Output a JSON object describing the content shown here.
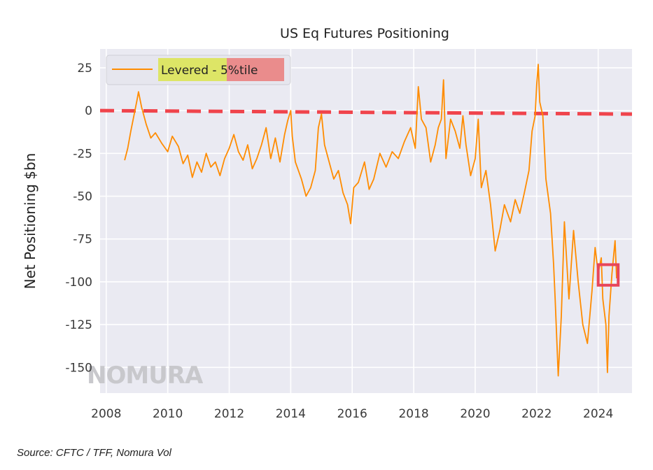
{
  "chart_data": {
    "type": "line",
    "title": "US Eq Futures Positioning",
    "xlabel": "",
    "ylabel": "Net Positioning $bn",
    "xlim": [
      2007.8,
      2025.1
    ],
    "ylim": [
      -165,
      36
    ],
    "x_ticks": [
      2008,
      2010,
      2012,
      2014,
      2016,
      2018,
      2020,
      2022,
      2024
    ],
    "y_ticks": [
      25,
      0,
      -25,
      -50,
      -75,
      -100,
      -125,
      -150
    ],
    "grid": true,
    "legend": {
      "location": "top-left",
      "entry": "Levered",
      "suffix": " - 5%tile"
    },
    "reference_line": {
      "y": 0,
      "style": "dashed",
      "color": "#f0444c"
    },
    "highlight_box": {
      "x": [
        2024.0,
        2024.65
      ],
      "y": [
        -90,
        -102
      ]
    },
    "series": [
      {
        "name": "Levered",
        "color": "#ff8c00",
        "points": [
          [
            2008.6,
            -29
          ],
          [
            2008.7,
            -22
          ],
          [
            2008.8,
            -12
          ],
          [
            2008.9,
            -3
          ],
          [
            2009.0,
            6
          ],
          [
            2009.05,
            11
          ],
          [
            2009.15,
            2
          ],
          [
            2009.3,
            -8
          ],
          [
            2009.45,
            -16
          ],
          [
            2009.6,
            -13
          ],
          [
            2009.8,
            -19
          ],
          [
            2010.0,
            -24
          ],
          [
            2010.15,
            -15
          ],
          [
            2010.35,
            -21
          ],
          [
            2010.5,
            -31
          ],
          [
            2010.65,
            -26
          ],
          [
            2010.8,
            -39
          ],
          [
            2010.95,
            -30
          ],
          [
            2011.1,
            -36
          ],
          [
            2011.25,
            -25
          ],
          [
            2011.4,
            -33
          ],
          [
            2011.55,
            -30
          ],
          [
            2011.7,
            -38
          ],
          [
            2011.85,
            -28
          ],
          [
            2012.0,
            -22
          ],
          [
            2012.15,
            -14
          ],
          [
            2012.3,
            -24
          ],
          [
            2012.45,
            -29
          ],
          [
            2012.6,
            -20
          ],
          [
            2012.75,
            -34
          ],
          [
            2012.9,
            -28
          ],
          [
            2013.05,
            -20
          ],
          [
            2013.2,
            -10
          ],
          [
            2013.35,
            -28
          ],
          [
            2013.5,
            -16
          ],
          [
            2013.65,
            -30
          ],
          [
            2013.8,
            -14
          ],
          [
            2013.9,
            -6
          ],
          [
            2014.0,
            0
          ],
          [
            2014.05,
            -15
          ],
          [
            2014.15,
            -30
          ],
          [
            2014.35,
            -40
          ],
          [
            2014.5,
            -50
          ],
          [
            2014.65,
            -45
          ],
          [
            2014.8,
            -35
          ],
          [
            2014.9,
            -10
          ],
          [
            2015.0,
            -2
          ],
          [
            2015.1,
            -20
          ],
          [
            2015.25,
            -30
          ],
          [
            2015.4,
            -40
          ],
          [
            2015.55,
            -35
          ],
          [
            2015.7,
            -48
          ],
          [
            2015.85,
            -55
          ],
          [
            2015.95,
            -66
          ],
          [
            2016.05,
            -45
          ],
          [
            2016.2,
            -42
          ],
          [
            2016.4,
            -30
          ],
          [
            2016.55,
            -46
          ],
          [
            2016.7,
            -40
          ],
          [
            2016.9,
            -25
          ],
          [
            2017.1,
            -33
          ],
          [
            2017.3,
            -24
          ],
          [
            2017.5,
            -28
          ],
          [
            2017.7,
            -18
          ],
          [
            2017.9,
            -10
          ],
          [
            2018.05,
            -22
          ],
          [
            2018.15,
            14
          ],
          [
            2018.25,
            -5
          ],
          [
            2018.4,
            -10
          ],
          [
            2018.55,
            -30
          ],
          [
            2018.7,
            -20
          ],
          [
            2018.8,
            -10
          ],
          [
            2018.9,
            -5
          ],
          [
            2018.97,
            18
          ],
          [
            2019.05,
            -28
          ],
          [
            2019.2,
            -5
          ],
          [
            2019.35,
            -12
          ],
          [
            2019.5,
            -22
          ],
          [
            2019.6,
            -3
          ],
          [
            2019.7,
            -20
          ],
          [
            2019.85,
            -38
          ],
          [
            2020.0,
            -28
          ],
          [
            2020.1,
            -5
          ],
          [
            2020.2,
            -45
          ],
          [
            2020.35,
            -35
          ],
          [
            2020.5,
            -55
          ],
          [
            2020.65,
            -82
          ],
          [
            2020.8,
            -70
          ],
          [
            2020.95,
            -55
          ],
          [
            2021.05,
            -60
          ],
          [
            2021.15,
            -65
          ],
          [
            2021.3,
            -52
          ],
          [
            2021.45,
            -60
          ],
          [
            2021.6,
            -48
          ],
          [
            2021.75,
            -35
          ],
          [
            2021.85,
            -12
          ],
          [
            2021.95,
            -3
          ],
          [
            2022.0,
            15
          ],
          [
            2022.05,
            27
          ],
          [
            2022.1,
            5
          ],
          [
            2022.2,
            -3
          ],
          [
            2022.3,
            -40
          ],
          [
            2022.45,
            -60
          ],
          [
            2022.55,
            -90
          ],
          [
            2022.6,
            -110
          ],
          [
            2022.7,
            -155
          ],
          [
            2022.8,
            -120
          ],
          [
            2022.9,
            -65
          ],
          [
            2023.05,
            -110
          ],
          [
            2023.2,
            -70
          ],
          [
            2023.35,
            -100
          ],
          [
            2023.5,
            -125
          ],
          [
            2023.65,
            -136
          ],
          [
            2023.8,
            -105
          ],
          [
            2023.9,
            -80
          ],
          [
            2024.0,
            -95
          ],
          [
            2024.1,
            -86
          ],
          [
            2024.15,
            -110
          ],
          [
            2024.25,
            -125
          ],
          [
            2024.3,
            -153
          ],
          [
            2024.35,
            -120
          ],
          [
            2024.45,
            -95
          ],
          [
            2024.55,
            -76
          ],
          [
            2024.6,
            -98
          ]
        ]
      }
    ]
  },
  "watermark": "NOMURA",
  "source_note": "Source: CFTC / TFF, Nomura Vol"
}
